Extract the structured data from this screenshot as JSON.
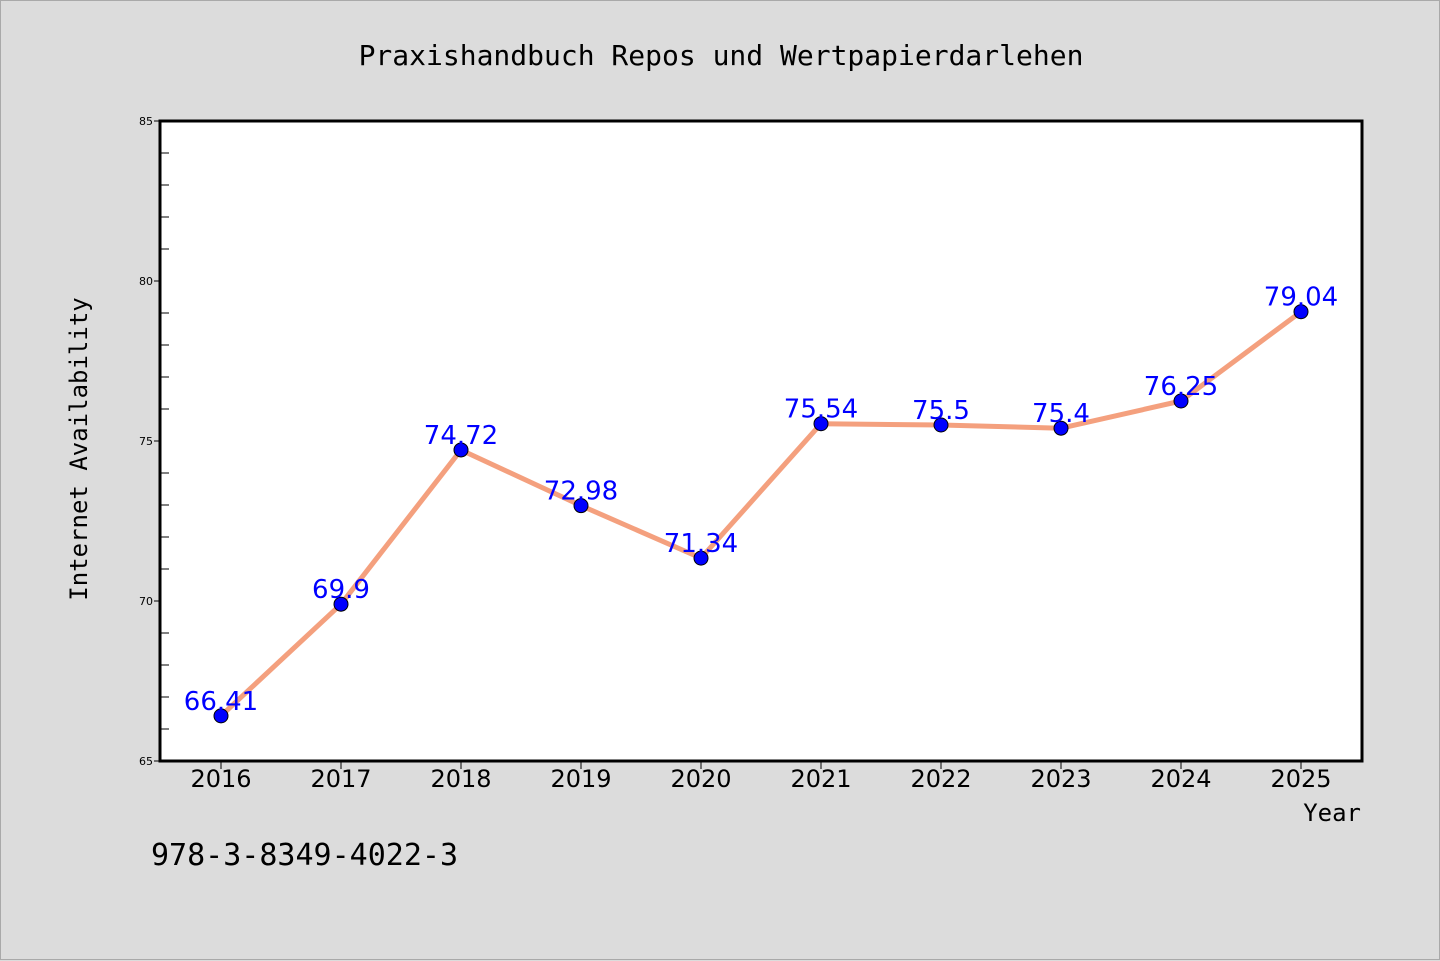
{
  "chart_data": {
    "type": "line",
    "title": "Praxishandbuch Repos und Wertpapierdarlehen",
    "xlabel": "Year",
    "ylabel": "Internet Availability",
    "categories": [
      "2016",
      "2017",
      "2018",
      "2019",
      "2020",
      "2021",
      "2022",
      "2023",
      "2024",
      "2025"
    ],
    "values": [
      66.41,
      69.9,
      74.72,
      72.98,
      71.34,
      75.54,
      75.5,
      75.4,
      76.25,
      79.04
    ],
    "data_labels": [
      "66.41",
      "69.9",
      "74.72",
      "72.98",
      "71.34",
      "75.54",
      "75.5",
      "75.4",
      "76.25",
      "79.04"
    ],
    "ylim": [
      65,
      85
    ],
    "yticks": [
      65,
      70,
      75,
      80,
      85
    ],
    "ytick_labels": [
      "65",
      "70",
      "75",
      "80",
      "85"
    ],
    "grid": false,
    "legend": "none",
    "line_color": "#f4a07e",
    "marker_color": "#0000ff",
    "label_color": "#0000ff"
  },
  "footer": {
    "isbn": "978-3-8349-4022-3"
  }
}
